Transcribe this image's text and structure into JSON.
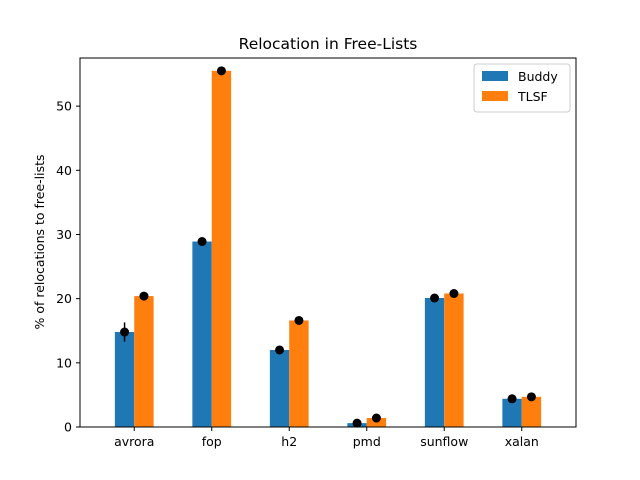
{
  "chart_data": {
    "type": "bar",
    "title": "Relocation in Free-Lists",
    "xlabel": "",
    "ylabel": "% of relocations to free-lists",
    "categories": [
      "avrora",
      "fop",
      "h2",
      "pmd",
      "sunflow",
      "xalan"
    ],
    "series": [
      {
        "name": "Buddy",
        "color": "#1f77b4",
        "values": [
          14.8,
          28.9,
          12.0,
          0.6,
          20.1,
          4.4
        ],
        "markers": [
          14.8,
          28.9,
          12.0,
          0.6,
          20.1,
          4.4
        ],
        "error": [
          1.5,
          0,
          0,
          0,
          0,
          0
        ]
      },
      {
        "name": "TLSF",
        "color": "#ff7f0e",
        "values": [
          20.4,
          55.5,
          16.6,
          1.4,
          20.8,
          4.7
        ],
        "markers": [
          20.4,
          55.5,
          16.6,
          1.4,
          20.8,
          4.7
        ],
        "error": [
          0,
          0,
          0,
          0,
          0,
          0
        ]
      }
    ],
    "ylim": [
      0,
      57.5
    ],
    "yticks": [
      0,
      10,
      20,
      30,
      40,
      50
    ],
    "grid": false,
    "legend_position": "top-right",
    "marker_color": "#000000"
  }
}
